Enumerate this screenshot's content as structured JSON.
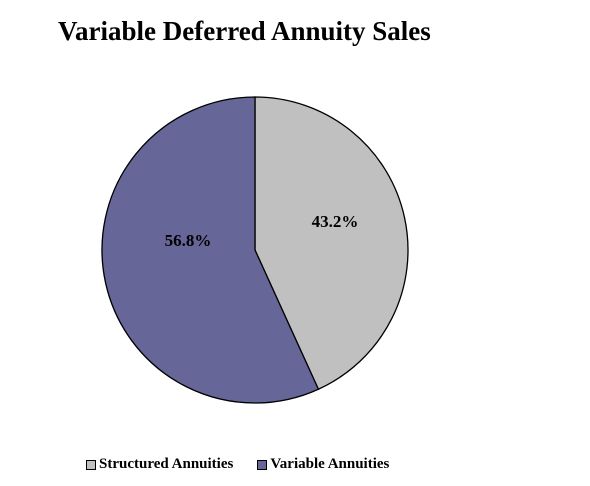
{
  "chart_data": {
    "type": "pie",
    "title": "Variable Deferred Annuity Sales",
    "slices": [
      {
        "name": "Structured Annuities",
        "value": 43.2,
        "label": "43.2%",
        "color": "#c0c0c0"
      },
      {
        "name": "Variable Annuities",
        "value": 56.8,
        "label": "56.8%",
        "color": "#666699"
      }
    ],
    "legend_position": "bottom",
    "start_angle": "12 o'clock",
    "direction": "clockwise"
  }
}
